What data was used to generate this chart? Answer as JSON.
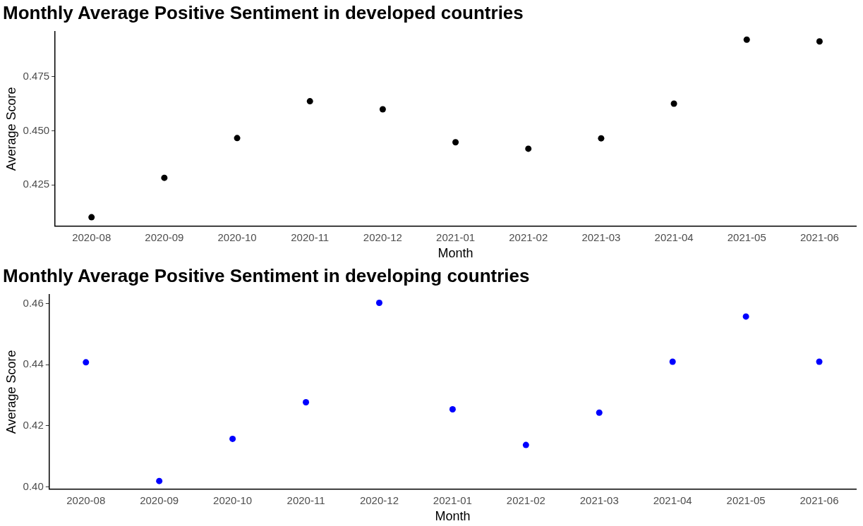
{
  "chart_data": [
    {
      "type": "scatter",
      "title": "Monthly Average Positive Sentiment in developed countries",
      "xlabel": "Month",
      "ylabel": "Average Score",
      "categories": [
        "2020-08",
        "2020-09",
        "2020-10",
        "2020-11",
        "2020-12",
        "2021-01",
        "2021-02",
        "2021-03",
        "2021-04",
        "2021-05",
        "2021-06"
      ],
      "series": [
        {
          "color": "#000000",
          "values": [
            0.4101,
            0.4283,
            0.4466,
            0.4636,
            0.4599,
            0.4447,
            0.4417,
            0.4465,
            0.4625,
            0.492,
            0.4912
          ]
        }
      ],
      "ylim": [
        0.4061,
        0.4956
      ],
      "yticks": [
        0.425,
        {
          "value": 0.45,
          "label": "0.450"
        },
        0.475
      ],
      "grid": false,
      "legend": false,
      "marker": "circle"
    },
    {
      "type": "scatter",
      "title": "Monthly Average Positive Sentiment in developing countries",
      "xlabel": "Month",
      "ylabel": "Average Score",
      "categories": [
        "2020-08",
        "2020-09",
        "2020-10",
        "2020-11",
        "2020-12",
        "2021-01",
        "2021-02",
        "2021-03",
        "2021-04",
        "2021-05",
        "2021-06"
      ],
      "series": [
        {
          "color": "#0000ff",
          "values": [
            0.4408,
            0.4019,
            0.4157,
            0.4277,
            0.4603,
            0.4254,
            0.4137,
            0.4243,
            0.441,
            0.4558,
            0.441
          ]
        }
      ],
      "ylim": [
        0.3993,
        0.4629
      ],
      "yticks": [
        {
          "value": 0.4,
          "label": "0.40"
        },
        {
          "value": 0.42,
          "label": "0.42"
        },
        {
          "value": 0.44,
          "label": "0.44"
        },
        {
          "value": 0.46,
          "label": "0.46"
        }
      ],
      "grid": false,
      "legend": false,
      "marker": "circle"
    }
  ]
}
